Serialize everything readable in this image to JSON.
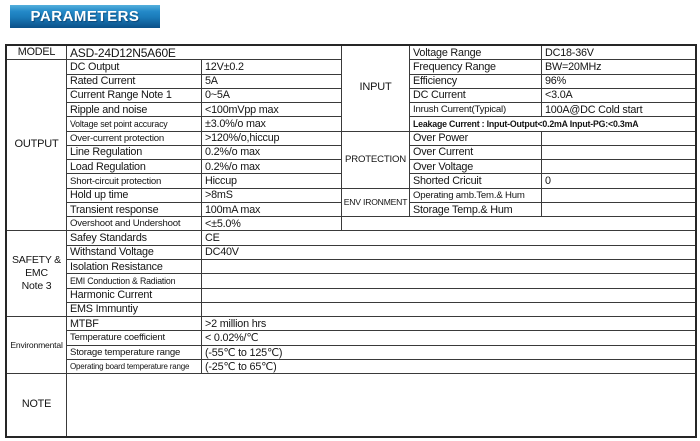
{
  "banner": {
    "label": "PARAMETERS",
    "color_top": "#55b0dc",
    "color_bottom": "#0b5088"
  },
  "table": {
    "model": {
      "label": "MODEL",
      "value": "ASD-24D12N5A60E"
    },
    "left_sections": [
      {
        "label": "OUTPUT",
        "rows": [
          [
            "DC Output",
            "12V±0.2"
          ],
          [
            "Rated Current",
            "5A"
          ],
          [
            "Current Range Note 1",
            "0~5A"
          ],
          [
            "Ripple and noise",
            "<100mVpp max"
          ],
          [
            "Voltage set point accuracy",
            "±3.0%/o max"
          ],
          [
            "Over-current protection",
            ">120%/o,hiccup"
          ],
          [
            "Line Regulation",
            "0.2%/o max"
          ],
          [
            "Load Regulation",
            "0.2%/o max"
          ],
          [
            "Short-circuit protection",
            "Hiccup"
          ],
          [
            "Hold up time",
            ">8mS"
          ],
          [
            "Transient response",
            "100mA max"
          ],
          [
            "Overshoot and Undershoot",
            "<±5.0%"
          ]
        ]
      },
      {
        "label": "SAFETY &\nEMC\nNote 3",
        "rows": [
          [
            "Safey Standards",
            "CE"
          ],
          [
            "Withstand Voltage",
            "DC40V"
          ],
          [
            "Isolation Resistance",
            ""
          ],
          [
            "EMI Conduction & Radiation",
            ""
          ],
          [
            "Harmonic Current",
            ""
          ],
          [
            "EMS Immuntiy",
            ""
          ]
        ]
      },
      {
        "label": "Environmental",
        "rows": [
          [
            "MTBF",
            ">2 million hrs"
          ],
          [
            "Temperature coefficient",
            "<  0.02%/℃"
          ],
          [
            "Storage temperature range",
            "(-55℃ to 125℃)"
          ],
          [
            "Operating board temperature range",
            "(-25℃ to 65℃)"
          ]
        ]
      }
    ],
    "note": {
      "label": "NOTE",
      "value": ""
    },
    "right_sections": [
      {
        "label": "INPUT",
        "rows": [
          [
            "Voltage Range",
            "DC18-36V"
          ],
          [
            "Frequency Range",
            "BW=20MHz"
          ],
          [
            "Efficiency",
            "96%"
          ],
          [
            "DC Current",
            "<3.0A"
          ],
          [
            "Inrush Current(Typical)",
            "100A@DC Cold start"
          ]
        ],
        "span_row": "Leakage Current : Input-Output<0.2mA Input-PG:<0.3mA"
      },
      {
        "label": "PROTECTION",
        "rows": [
          [
            "Over Power",
            ""
          ],
          [
            "Over Current",
            ""
          ],
          [
            "Over Voltage",
            ""
          ],
          [
            "Shorted Cricuit",
            "0"
          ]
        ]
      },
      {
        "label": "ENV IRONMENT",
        "rows": [
          [
            "Operating amb.Tem.& Hum",
            ""
          ],
          [
            "Storage Temp.& Hum",
            ""
          ]
        ]
      }
    ]
  }
}
